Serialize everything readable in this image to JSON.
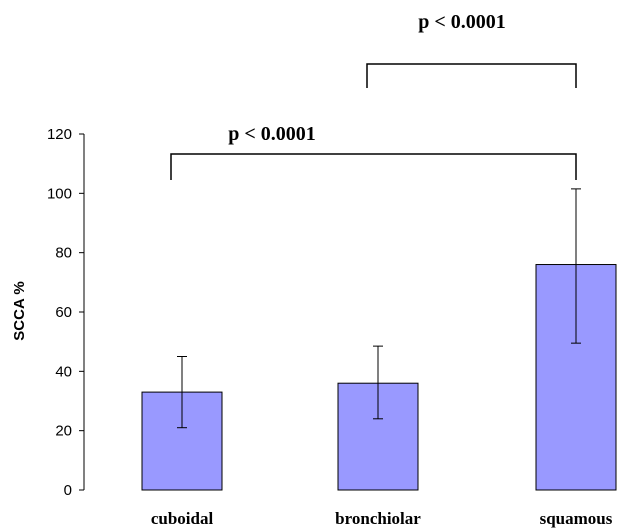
{
  "chart_data": {
    "type": "bar",
    "categories": [
      "cuboidal",
      "bronchiolar",
      "squamous"
    ],
    "values": [
      33,
      36,
      76
    ],
    "error_upper": [
      45,
      48.5,
      101.5
    ],
    "error_lower": [
      21,
      24,
      49.5
    ],
    "xlabel": "",
    "ylabel": "SCCA %",
    "ylim": [
      0,
      120
    ],
    "yticks": [
      0,
      20,
      40,
      60,
      80,
      100,
      120
    ],
    "grid": false,
    "bar_color": "#9999ff",
    "annotations": [
      {
        "text": "p < 0.0001",
        "from": "bronchiolar",
        "to": "squamous",
        "level": "upper"
      },
      {
        "text": "p < 0.0001",
        "from": "cuboidal",
        "to": "squamous",
        "level": "lower"
      }
    ]
  }
}
